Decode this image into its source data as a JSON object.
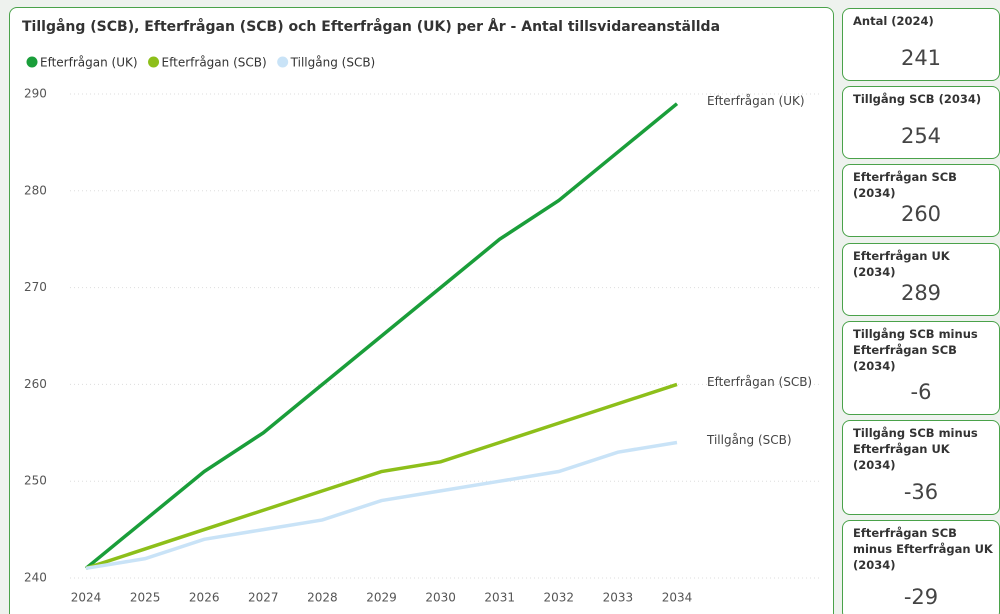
{
  "chart_data": {
    "type": "line",
    "title": "Tillgång (SCB), Efterfrågan (SCB) och Efterfrågan (UK) per År - Antal tillsvidareanställda",
    "x": [
      2024,
      2025,
      2026,
      2027,
      2028,
      2029,
      2030,
      2031,
      2032,
      2033,
      2034
    ],
    "series": [
      {
        "name": "Efterfrågan (UK)",
        "color": "#1a9e3a",
        "values": [
          241,
          246,
          251,
          255,
          260,
          265,
          270,
          275,
          279,
          284,
          289
        ]
      },
      {
        "name": "Efterfrågan (SCB)",
        "color": "#8dbf1a",
        "values": [
          241,
          243,
          245,
          247,
          249,
          251,
          252,
          254,
          256,
          258,
          260
        ]
      },
      {
        "name": "Tillgång (SCB)",
        "color": "#c9e3f7",
        "values": [
          241,
          242,
          244,
          245,
          246,
          248,
          249,
          250,
          251,
          253,
          254
        ]
      }
    ],
    "xlim": [
      2024,
      2034
    ],
    "xticks": [
      2024,
      2025,
      2026,
      2027,
      2028,
      2029,
      2030,
      2031,
      2032,
      2033,
      2034
    ],
    "ylim": [
      240,
      290
    ],
    "yticks": [
      240,
      250,
      260,
      270,
      280,
      290
    ],
    "grid": true
  },
  "cards": [
    {
      "title": "Antal (2024)",
      "value": 241
    },
    {
      "title": "Tillgång SCB (2034)",
      "value": 254
    },
    {
      "title": "Efterfrågan SCB (2034)",
      "value": 260
    },
    {
      "title": "Efterfrågan UK (2034)",
      "value": 289
    },
    {
      "title": "Tillgång SCB minus Efterfrågan SCB (2034)",
      "value": -6
    },
    {
      "title": "Tillgång SCB minus Efterfrågan UK (2034)",
      "value": -36
    },
    {
      "title": "Efterfrågan SCB minus Efterfrågan UK (2034)",
      "value": -29
    }
  ]
}
